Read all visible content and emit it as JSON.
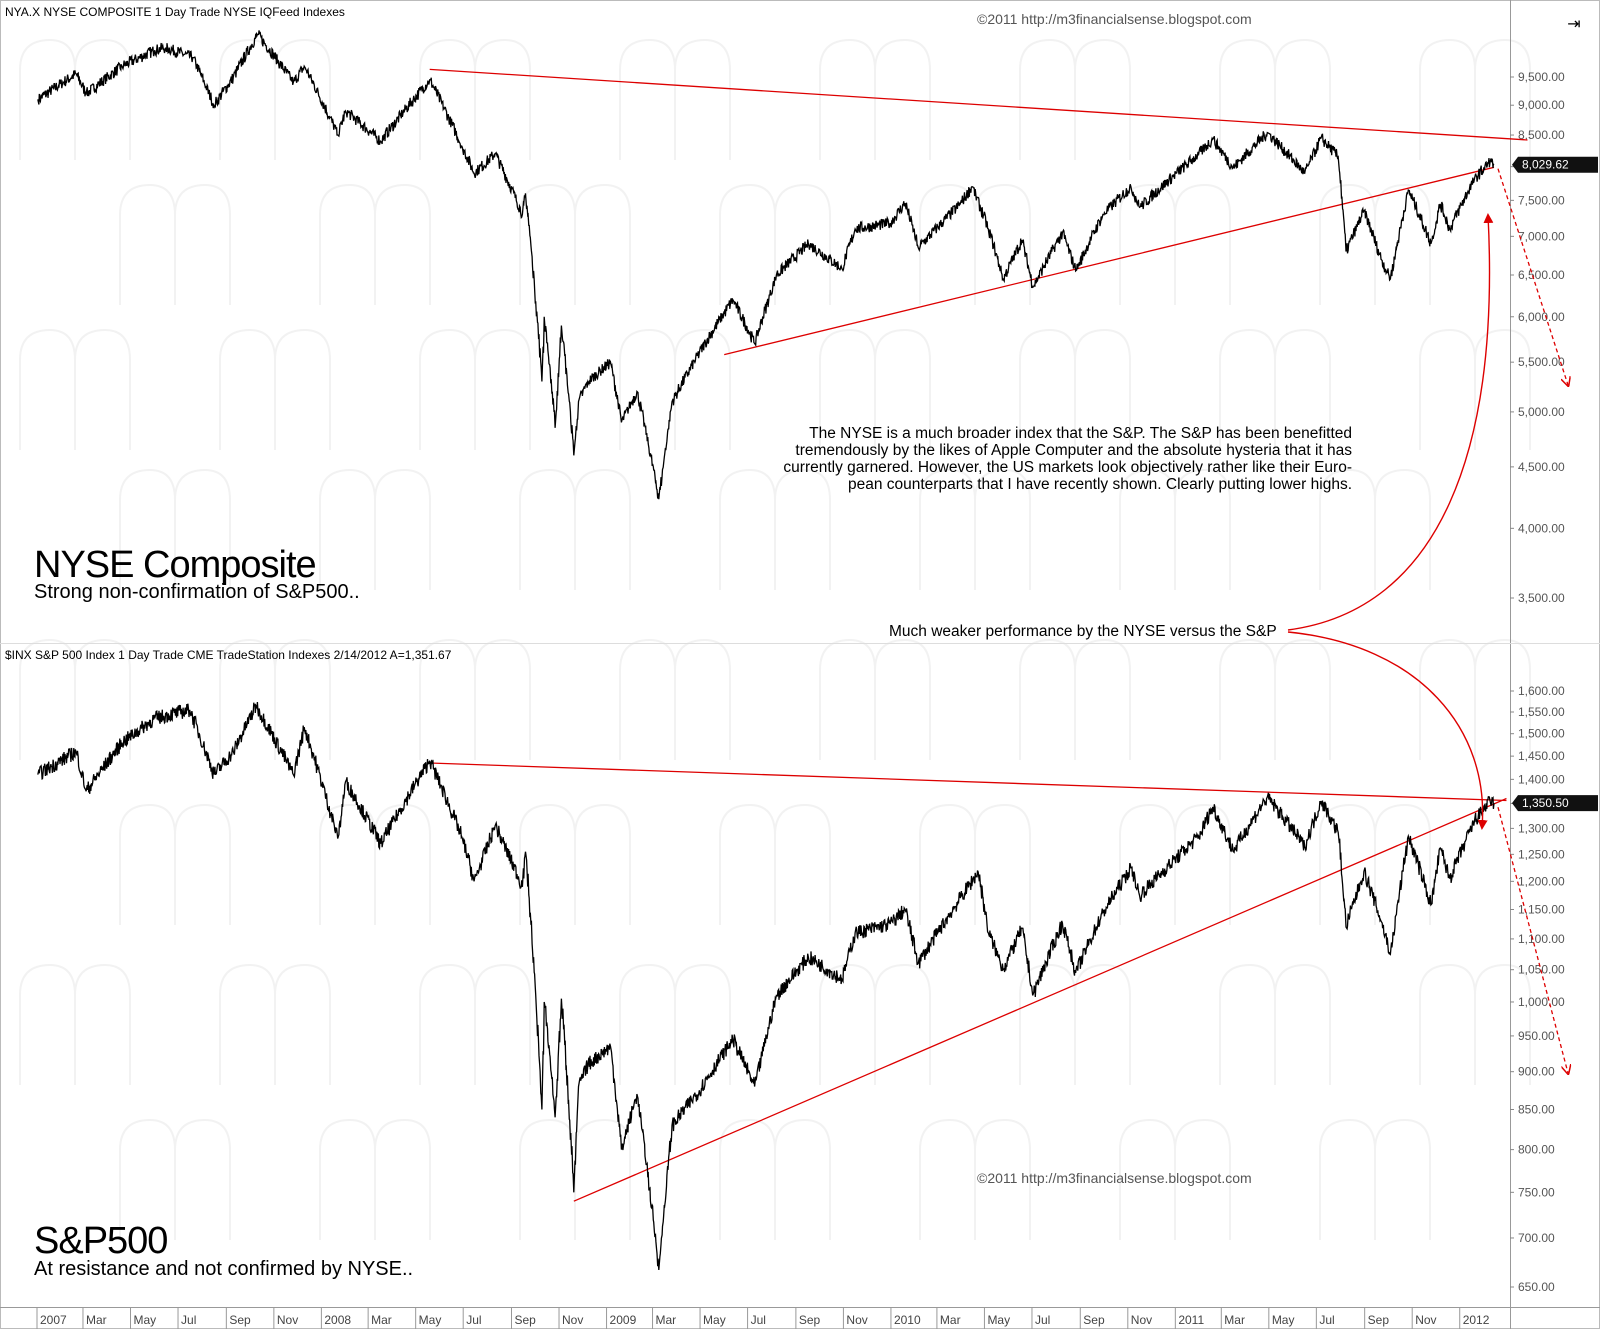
{
  "colors": {
    "price": "#000000",
    "trendline": "#dd0000",
    "axis_text": "#555555",
    "background": "#ffffff"
  },
  "icons": {
    "scroll_button": "scroll-right-icon"
  },
  "chart_data": [
    {
      "type": "line",
      "header": "NYA.X  NYSE COMPOSITE  1 Day  Trade  NYSE  IQFeed  Indexes",
      "copyright": "©2011 http://m3financialsense.blogspot.com",
      "title": "NYSE Composite",
      "subtitle": "Strong non-confirmation of S&P500..",
      "last_value": "8,029.62",
      "y_scale": "log",
      "ylim": [
        3300,
        10300
      ],
      "y_tick_labels": [
        "9,500.00",
        "9,000.00",
        "8,500.00",
        "8,000.00",
        "7,500.00",
        "7,000.00",
        "6,500.00",
        "6,000.00",
        "5,500.00",
        "5,000.00",
        "4,500.00",
        "4,000.00",
        "3,500.00"
      ],
      "y_tick_values": [
        9500,
        9000,
        8500,
        8000,
        7500,
        7000,
        6500,
        6000,
        5500,
        5000,
        4500,
        4000,
        3500
      ],
      "series": [
        {
          "points": [
            [
              "2007-01-02",
              9100
            ],
            [
              "2007-02-20",
              9560
            ],
            [
              "2007-03-05",
              9200
            ],
            [
              "2007-04-20",
              9700
            ],
            [
              "2007-06-01",
              10000
            ],
            [
              "2007-06-15",
              10050
            ],
            [
              "2007-07-20",
              9860
            ],
            [
              "2007-08-16",
              9000
            ],
            [
              "2007-09-10",
              9500
            ],
            [
              "2007-10-11",
              10310
            ],
            [
              "2007-11-26",
              9400
            ],
            [
              "2007-12-10",
              9700
            ],
            [
              "2008-01-22",
              8500
            ],
            [
              "2008-02-01",
              8900
            ],
            [
              "2008-03-17",
              8400
            ],
            [
              "2008-05-19",
              9450
            ],
            [
              "2008-06-30",
              8300
            ],
            [
              "2008-07-15",
              7900
            ],
            [
              "2008-08-11",
              8200
            ],
            [
              "2008-09-15",
              7300
            ],
            [
              "2008-09-19",
              7600
            ],
            [
              "2008-10-10",
              5300
            ],
            [
              "2008-10-13",
              6000
            ],
            [
              "2008-10-27",
              4850
            ],
            [
              "2008-11-04",
              5900
            ],
            [
              "2008-11-20",
              4600
            ],
            [
              "2008-11-26",
              5100
            ],
            [
              "2008-12-08",
              5300
            ],
            [
              "2009-01-06",
              5500
            ],
            [
              "2009-01-20",
              4900
            ],
            [
              "2009-02-09",
              5200
            ],
            [
              "2009-03-09",
              4230
            ],
            [
              "2009-03-26",
              5100
            ],
            [
              "2009-04-30",
              5600
            ],
            [
              "2009-06-12",
              6200
            ],
            [
              "2009-07-10",
              5700
            ],
            [
              "2009-08-07",
              6500
            ],
            [
              "2009-09-17",
              6900
            ],
            [
              "2009-10-30",
              6580
            ],
            [
              "2009-11-16",
              7100
            ],
            [
              "2009-12-31",
              7180
            ],
            [
              "2010-01-19",
              7460
            ],
            [
              "2010-02-05",
              6850
            ],
            [
              "2010-03-31",
              7450
            ],
            [
              "2010-04-15",
              7700
            ],
            [
              "2010-05-06",
              7100
            ],
            [
              "2010-05-25",
              6450
            ],
            [
              "2010-06-18",
              6950
            ],
            [
              "2010-07-02",
              6350
            ],
            [
              "2010-08-09",
              7050
            ],
            [
              "2010-08-26",
              6550
            ],
            [
              "2010-09-30",
              7300
            ],
            [
              "2010-11-05",
              7700
            ],
            [
              "2010-11-16",
              7400
            ],
            [
              "2011-01-31",
              8200
            ],
            [
              "2011-02-18",
              8430
            ],
            [
              "2011-03-16",
              7980
            ],
            [
              "2011-04-29",
              8540
            ],
            [
              "2011-06-16",
              7900
            ],
            [
              "2011-07-07",
              8450
            ],
            [
              "2011-07-29",
              8150
            ],
            [
              "2011-08-08",
              6800
            ],
            [
              "2011-08-31",
              7350
            ],
            [
              "2011-09-22",
              6700
            ],
            [
              "2011-10-04",
              6450
            ],
            [
              "2011-10-27",
              7650
            ],
            [
              "2011-11-25",
              6900
            ],
            [
              "2011-12-07",
              7450
            ],
            [
              "2011-12-19",
              7100
            ],
            [
              "2012-01-20",
              7820
            ],
            [
              "2012-02-09",
              8080
            ],
            [
              "2012-02-14",
              8030
            ]
          ]
        }
      ],
      "trendlines": [
        {
          "name": "resistance",
          "points": [
            [
              "2008-05-19",
              9640
            ],
            [
              "2012-03-28",
              8420
            ]
          ]
        },
        {
          "name": "support",
          "points": [
            [
              "2009-06-01",
              5580
            ],
            [
              "2012-02-14",
              7990
            ]
          ]
        }
      ],
      "annotation_text": [
        "The NYSE is a much broader index that the S&P. The S&P has been benefitted",
        "tremendously by the likes of Apple Computer and the absolute hysteria that it has",
        "currently garnered. However, the US markets look objectively rather like their Euro-",
        "pean counterparts that I have recently shown. Clearly putting lower highs."
      ]
    },
    {
      "type": "line",
      "header": "$INX  S&P 500 Index  1 Day  Trade  CME  TradeStation  Indexes  2/14/2012  A=1,351.67",
      "copyright": "©2011 http://m3financialsense.blogspot.com",
      "title": "S&P500",
      "subtitle": "At resistance and not confirmed by NYSE..",
      "last_value": "1,350.50",
      "y_scale": "log",
      "ylim": [
        630,
        1660
      ],
      "y_tick_labels": [
        "1,600.00",
        "1,550.00",
        "1,500.00",
        "1,450.00",
        "1,400.00",
        "1,350.00",
        "1,300.00",
        "1,250.00",
        "1,200.00",
        "1,150.00",
        "1,100.00",
        "1,050.00",
        "1,000.00",
        "950.00",
        "900.00",
        "850.00",
        "800.00",
        "750.00",
        "700.00",
        "650.00"
      ],
      "y_tick_values": [
        1600,
        1550,
        1500,
        1450,
        1400,
        1350,
        1300,
        1250,
        1200,
        1150,
        1100,
        1050,
        1000,
        950,
        900,
        850,
        800,
        750,
        700,
        650
      ],
      "series": [
        {
          "points": [
            [
              "2007-01-02",
              1410
            ],
            [
              "2007-02-20",
              1460
            ],
            [
              "2007-03-05",
              1375
            ],
            [
              "2007-04-20",
              1480
            ],
            [
              "2007-06-01",
              1535
            ],
            [
              "2007-07-16",
              1555
            ],
            [
              "2007-08-16",
              1410
            ],
            [
              "2007-09-10",
              1460
            ],
            [
              "2007-10-09",
              1565
            ],
            [
              "2007-11-26",
              1410
            ],
            [
              "2007-12-10",
              1515
            ],
            [
              "2008-01-22",
              1280
            ],
            [
              "2008-02-01",
              1395
            ],
            [
              "2008-03-17",
              1270
            ],
            [
              "2008-05-19",
              1440
            ],
            [
              "2008-06-30",
              1280
            ],
            [
              "2008-07-15",
              1200
            ],
            [
              "2008-08-11",
              1305
            ],
            [
              "2008-09-15",
              1190
            ],
            [
              "2008-09-19",
              1255
            ],
            [
              "2008-10-10",
              850
            ],
            [
              "2008-10-13",
              1000
            ],
            [
              "2008-10-27",
              840
            ],
            [
              "2008-11-04",
              1005
            ],
            [
              "2008-11-20",
              750
            ],
            [
              "2008-11-26",
              880
            ],
            [
              "2008-12-08",
              910
            ],
            [
              "2009-01-06",
              935
            ],
            [
              "2009-01-20",
              800
            ],
            [
              "2009-02-09",
              870
            ],
            [
              "2009-03-09",
              667
            ],
            [
              "2009-03-26",
              830
            ],
            [
              "2009-04-30",
              875
            ],
            [
              "2009-06-12",
              945
            ],
            [
              "2009-07-10",
              880
            ],
            [
              "2009-08-07",
              1010
            ],
            [
              "2009-09-17",
              1070
            ],
            [
              "2009-10-30",
              1035
            ],
            [
              "2009-11-16",
              1110
            ],
            [
              "2009-12-31",
              1125
            ],
            [
              "2010-01-19",
              1150
            ],
            [
              "2010-02-05",
              1060
            ],
            [
              "2010-03-31",
              1170
            ],
            [
              "2010-04-23",
              1217
            ],
            [
              "2010-05-06",
              1110
            ],
            [
              "2010-05-25",
              1050
            ],
            [
              "2010-06-18",
              1118
            ],
            [
              "2010-07-02",
              1010
            ],
            [
              "2010-08-09",
              1127
            ],
            [
              "2010-08-26",
              1045
            ],
            [
              "2010-09-30",
              1145
            ],
            [
              "2010-11-05",
              1225
            ],
            [
              "2010-11-16",
              1175
            ],
            [
              "2011-01-31",
              1285
            ],
            [
              "2011-02-18",
              1343
            ],
            [
              "2011-03-16",
              1256
            ],
            [
              "2011-04-29",
              1363
            ],
            [
              "2011-06-16",
              1265
            ],
            [
              "2011-07-07",
              1355
            ],
            [
              "2011-07-29",
              1292
            ],
            [
              "2011-08-08",
              1120
            ],
            [
              "2011-08-31",
              1218
            ],
            [
              "2011-09-22",
              1130
            ],
            [
              "2011-10-04",
              1075
            ],
            [
              "2011-10-27",
              1285
            ],
            [
              "2011-11-25",
              1158
            ],
            [
              "2011-12-07",
              1262
            ],
            [
              "2011-12-19",
              1205
            ],
            [
              "2012-01-20",
              1315
            ],
            [
              "2012-02-09",
              1355
            ],
            [
              "2012-02-14",
              1350.5
            ]
          ]
        }
      ],
      "trendlines": [
        {
          "name": "resistance",
          "points": [
            [
              "2008-05-19",
              1435
            ],
            [
              "2012-03-01",
              1356
            ]
          ]
        },
        {
          "name": "support",
          "points": [
            [
              "2008-11-20",
              740
            ],
            [
              "2012-03-01",
              1360
            ]
          ]
        }
      ]
    }
  ],
  "callout_text": "Much weaker performance by the NYSE versus the S&P",
  "x_axis": {
    "labels": [
      "2007",
      "Mar",
      "May",
      "Jul",
      "Sep",
      "Nov",
      "2008",
      "Mar",
      "May",
      "Jul",
      "Sep",
      "Nov",
      "2009",
      "Mar",
      "May",
      "Jul",
      "Sep",
      "Nov",
      "2010",
      "Mar",
      "May",
      "Jul",
      "Sep",
      "Nov",
      "2011",
      "Mar",
      "May",
      "Jul",
      "Sep",
      "Nov",
      "2012"
    ],
    "dates": [
      "2007-01-01",
      "2007-03-01",
      "2007-05-01",
      "2007-07-01",
      "2007-09-01",
      "2007-11-01",
      "2008-01-01",
      "2008-03-01",
      "2008-05-01",
      "2008-07-01",
      "2008-09-01",
      "2008-11-01",
      "2009-01-01",
      "2009-03-01",
      "2009-05-01",
      "2009-07-01",
      "2009-09-01",
      "2009-11-01",
      "2010-01-01",
      "2010-03-01",
      "2010-05-01",
      "2010-07-01",
      "2010-09-01",
      "2010-11-01",
      "2011-01-01",
      "2011-03-01",
      "2011-05-01",
      "2011-07-01",
      "2011-09-01",
      "2011-11-01",
      "2012-01-01"
    ]
  }
}
